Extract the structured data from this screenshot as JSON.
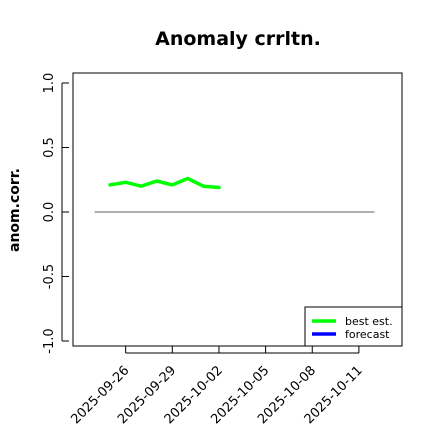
{
  "chart_data": {
    "type": "line",
    "title": "Anomaly crrltn.",
    "xlabel": "",
    "ylabel": "anom.corr.",
    "ylim": [
      -1.0,
      1.0
    ],
    "yticks": [
      -1.0,
      -0.5,
      0.0,
      0.5,
      1.0
    ],
    "ytick_labels": [
      "-1.0",
      "-0.5",
      "0.0",
      "0.5",
      "1.0"
    ],
    "xlim": [
      "2025-09-23",
      "2025-10-13"
    ],
    "xticks": [
      {
        "date": "2025-09-26",
        "label": "2025-09-26",
        "color": "#000000"
      },
      {
        "date": "2025-09-29",
        "label": "2025-09-29",
        "color": "#000000"
      },
      {
        "date": "2025-10-02",
        "label": "2025-10-02",
        "color": "#228B22"
      },
      {
        "date": "2025-10-05",
        "label": "2025-10-05",
        "color": "#000000"
      },
      {
        "date": "2025-10-08",
        "label": "2025-10-08",
        "color": "#000000"
      },
      {
        "date": "2025-10-11",
        "label": "2025-10-11",
        "color": "#000000"
      }
    ],
    "reference_line": {
      "y": 0.0,
      "x_from": "2025-09-24",
      "x_to": "2025-10-12",
      "color": "#808080"
    },
    "series": [
      {
        "name": "best est.",
        "color": "#00ff00",
        "x": [
          "2025-09-25",
          "2025-09-26",
          "2025-09-27",
          "2025-09-28",
          "2025-09-29",
          "2025-09-30",
          "2025-10-01",
          "2025-10-02"
        ],
        "y": [
          0.21,
          0.23,
          0.2,
          0.24,
          0.21,
          0.26,
          0.2,
          0.19
        ]
      },
      {
        "name": "forecast",
        "color": "#0000ff",
        "x": [],
        "y": []
      }
    ],
    "legend_position": "bottom-right",
    "grid": false
  }
}
